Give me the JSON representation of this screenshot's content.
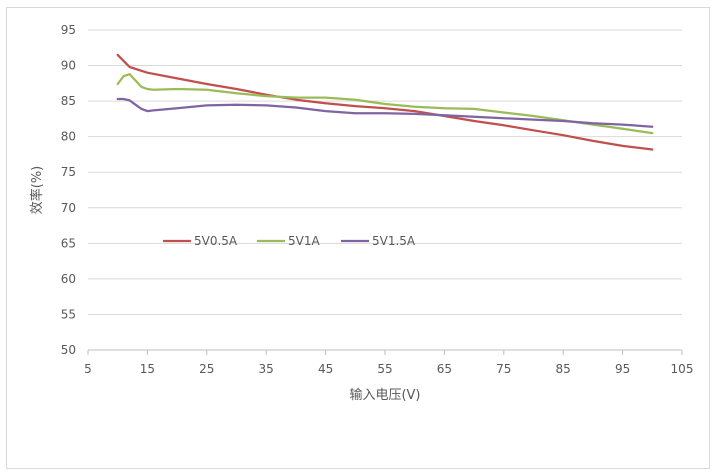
{
  "chart_data": {
    "type": "line",
    "title": "",
    "xlabel": "输入电压(V)",
    "ylabel": "效率(%)",
    "xlim": [
      5,
      105
    ],
    "ylim": [
      50,
      95
    ],
    "xticks": [
      5,
      15,
      25,
      35,
      45,
      55,
      65,
      75,
      85,
      95,
      105
    ],
    "yticks": [
      50,
      55,
      60,
      65,
      70,
      75,
      80,
      85,
      90,
      95
    ],
    "grid": "horizontal",
    "legend_position": "center-left",
    "series": [
      {
        "name": "5V0.5A",
        "color": "#c0504d",
        "x": [
          10,
          12,
          15,
          20,
          25,
          30,
          35,
          40,
          45,
          50,
          55,
          60,
          65,
          70,
          75,
          80,
          85,
          90,
          95,
          100
        ],
        "y": [
          91.5,
          89.8,
          89.0,
          88.2,
          87.4,
          86.7,
          85.9,
          85.2,
          84.7,
          84.3,
          84.0,
          83.6,
          82.9,
          82.2,
          81.6,
          80.9,
          80.2,
          79.4,
          78.7,
          78.2
        ]
      },
      {
        "name": "5V1A",
        "color": "#9bbb59",
        "x": [
          10,
          11,
          12,
          13,
          14,
          15,
          16,
          20,
          25,
          30,
          35,
          40,
          45,
          50,
          55,
          60,
          65,
          70,
          75,
          80,
          85,
          90,
          95,
          100
        ],
        "y": [
          87.4,
          88.5,
          88.8,
          87.9,
          87.0,
          86.7,
          86.6,
          86.7,
          86.6,
          86.1,
          85.7,
          85.5,
          85.5,
          85.2,
          84.6,
          84.2,
          84.0,
          83.9,
          83.4,
          82.9,
          82.3,
          81.7,
          81.1,
          80.5
        ]
      },
      {
        "name": "5V1.5A",
        "color": "#8064a2",
        "x": [
          10,
          11,
          12,
          13,
          14,
          15,
          16,
          20,
          25,
          30,
          35,
          40,
          45,
          50,
          55,
          60,
          65,
          70,
          75,
          80,
          85,
          90,
          95,
          100
        ],
        "y": [
          85.3,
          85.3,
          85.1,
          84.5,
          83.9,
          83.6,
          83.7,
          84.0,
          84.4,
          84.5,
          84.4,
          84.1,
          83.6,
          83.3,
          83.3,
          83.2,
          83.0,
          82.8,
          82.6,
          82.4,
          82.2,
          81.9,
          81.7,
          81.4
        ]
      }
    ]
  }
}
